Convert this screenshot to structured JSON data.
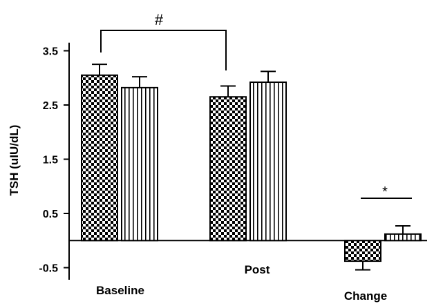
{
  "chart_data": {
    "type": "bar",
    "ylabel": "TSH (uIU/dL)",
    "ylim": [
      -0.75,
      3.65
    ],
    "y_ticks": [
      -0.5,
      0.5,
      1.5,
      2.5,
      3.5
    ],
    "y_tick_labels": [
      "-0.5",
      "0.5",
      "1.5",
      "2.5",
      "3.5"
    ],
    "categories": [
      "Baseline",
      "Post",
      "Change"
    ],
    "series": [
      {
        "pattern": "checkerboard",
        "values": [
          3.05,
          2.65,
          -0.38
        ],
        "errors": [
          0.2,
          0.2,
          0.16
        ]
      },
      {
        "pattern": "vertical-stripes",
        "values": [
          2.82,
          2.92,
          0.12
        ],
        "errors": [
          0.2,
          0.2,
          0.15
        ]
      }
    ],
    "annotations": [
      {
        "text": "#",
        "between": "Baseline checkerboard and Post checkerboard"
      },
      {
        "text": "*",
        "between": "Change checkerboard and Change vertical-stripes"
      }
    ]
  }
}
